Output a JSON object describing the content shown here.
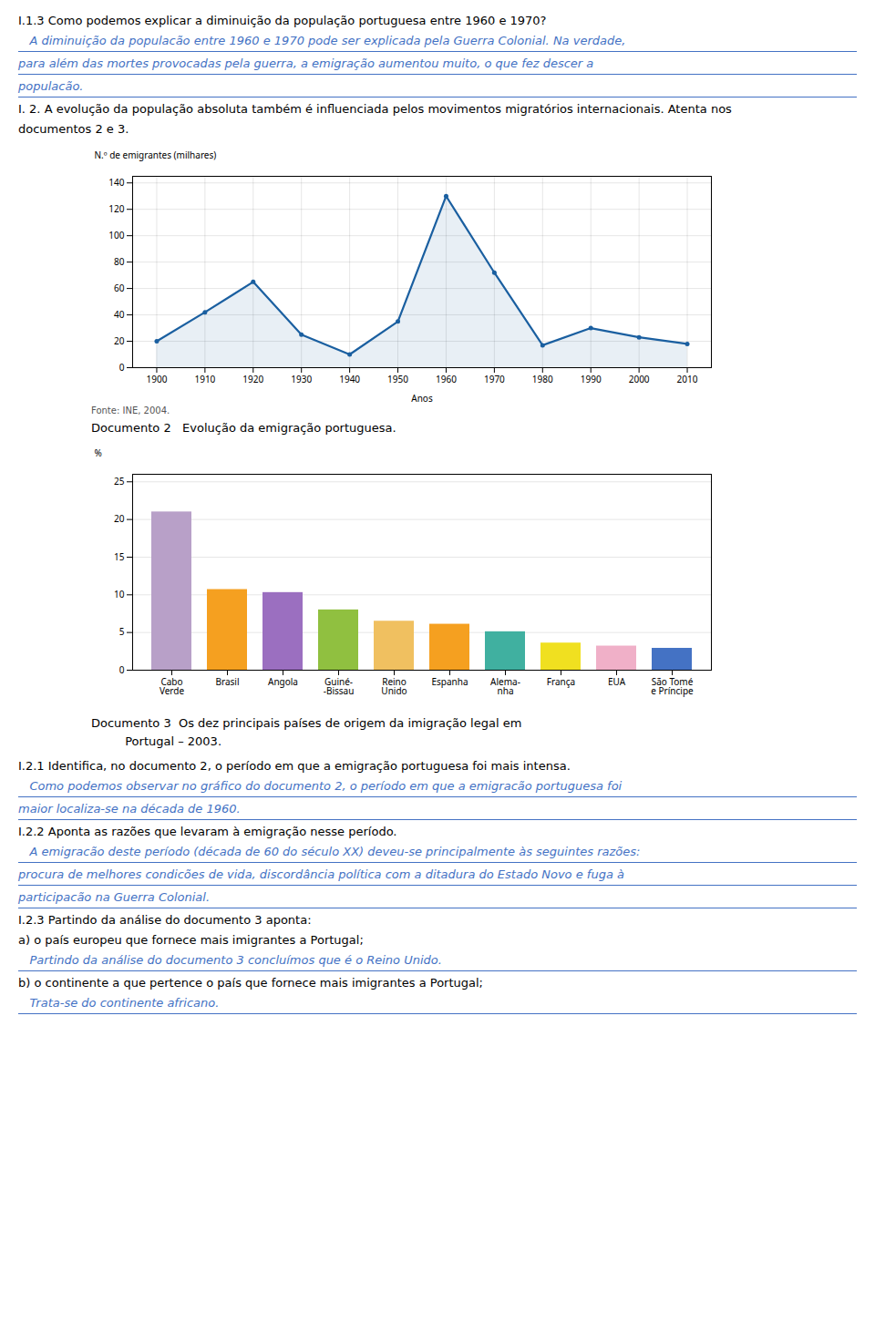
{
  "chart_data": [
    {
      "type": "line",
      "title": "Documento 2   Evolução da emigração portuguesa.",
      "x": [
        1900,
        1910,
        1920,
        1930,
        1940,
        1950,
        1960,
        1970,
        1980,
        1990,
        2000,
        2010
      ],
      "values": [
        20,
        42,
        65,
        25,
        10,
        35,
        130,
        72,
        17,
        30,
        23,
        18
      ],
      "color": "#1a5fa0",
      "marker": "o",
      "xlim": [
        1895,
        2015
      ],
      "xticks": [
        1900,
        1910,
        1920,
        1930,
        1940,
        1950,
        1960,
        1970,
        1980,
        1990,
        2000,
        2010
      ],
      "ylim": [
        0,
        145
      ],
      "yticks": [
        0,
        20,
        40,
        60,
        80,
        100,
        120,
        140
      ],
      "xlabel": "Anos",
      "ylabel": "N.º de emigrantes (milhares)",
      "grid": true,
      "annotations": [
        "Fonte: INE, 2004."
      ]
    },
    {
      "type": "bar",
      "title": "Documento 3  Os dez principais países de origem da imigração legal em\n         Portugal – 2003.",
      "categories": [
        "Cabo\nVerde",
        "Brasil",
        "Angola",
        "Guiné-\n-Bissau",
        "Reino\nUnido",
        "Espanha",
        "Alema-\nnha",
        "França",
        "EUA",
        "São Tomé\ne Príncipe"
      ],
      "values": [
        21,
        10.7,
        10.3,
        8.0,
        6.5,
        6.1,
        5.1,
        3.6,
        3.2,
        2.9
      ],
      "colors": [
        "#b8a0c8",
        "#f5a020",
        "#9b6fc0",
        "#90c040",
        "#f0c060",
        "#f5a020",
        "#40b0a0",
        "#f0e020",
        "#f0b0c8",
        "#4472c4"
      ],
      "ylim": [
        0,
        26
      ],
      "yticks": [
        0,
        5,
        10,
        15,
        20,
        25
      ],
      "ylabel": "%",
      "grid": true
    }
  ],
  "annotations": [
    [
      "I.1.3 Como podemos explicar a diminuição da população portuguesa entre 1960 e 1970?",
      {
        "text": "   A diminuição da populacão entre 1960 e 1970 pode ser explicada pela Guerra Colonial. Na verdade,",
        "color": "#4472c4"
      },
      {
        "text": "para além das mortes provocadas pela guerra, a emigração aumentou muito, o que fez descer a",
        "color": "#4472c4"
      },
      {
        "text": "populacão.",
        "color": "#4472c4"
      },
      "I. 2. A evolução da população absoluta também é influenciada pelos movimentos migratórios internacionais. Atenta nos",
      "documentos 2 e 3."
    ],
    [
      "I.2.1 Identifica, no documento 2, o período em que a emigração portuguesa foi mais intensa.",
      {
        "text": "   Como podemos observar no gráfico do documento 2, o período em que a emigracão portuguesa foi",
        "color": "#4472c4"
      },
      {
        "text": "maior localiza-se na década de 1960.",
        "color": "#4472c4"
      },
      "I.2.2 Aponta as razões que levaram à emigração nesse período.",
      {
        "text": "   A emigracão deste período (década de 60 do século XX) deveu-se principalmente às seguintes razões:",
        "color": "#4472c4"
      },
      {
        "text": "procura de melhores condicões de vida, discordância política com a ditadura do Estado Novo e fuga à",
        "color": "#4472c4"
      },
      {
        "text": "participacão na Guerra Colonial.",
        "color": "#4472c4"
      },
      "I.2.3 Partindo da análise do documento 3 aponta:",
      "a) o país europeu que fornece mais imigrantes a Portugal;",
      {
        "text": "   Partindo da análise do documento 3 concluímos que é o Reino Unido.",
        "color": "#4472c4"
      },
      "b) o continente a que pertence o país que fornece mais imigrantes a Portugal;",
      {
        "text": "   Trata-se do continente africano.",
        "color": "#4472c4"
      }
    ]
  ]
}
